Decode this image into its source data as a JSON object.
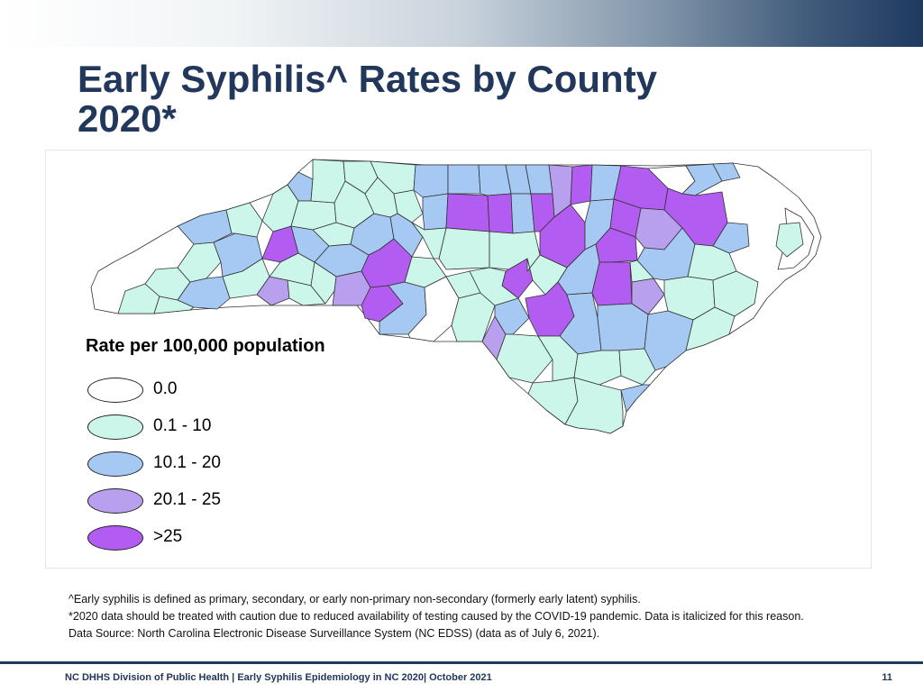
{
  "slide": {
    "title": "Early Syphilis^ Rates by County\n2020*"
  },
  "legend": {
    "title": "Rate per 100,000 population",
    "items": [
      {
        "label": "0.0",
        "color": "#ffffff"
      },
      {
        "label": "0.1 - 10",
        "color": "#ccf6ea"
      },
      {
        "label": "10.1 - 20",
        "color": "#a6c9f4"
      },
      {
        "label": "20.1 - 25",
        "color": "#b9a0ef"
      },
      {
        "label": ">25",
        "color": "#b35cf2"
      }
    ]
  },
  "notes": [
    "^Early syphilis is defined as primary, secondary, or early non-primary non-secondary (formerly early latent) syphilis.",
    "*2020 data should be treated with caution due to reduced availability of testing caused by the COVID-19 pandemic. Data is italicized for this reason.",
    "Data Source: North Carolina Electronic Disease Surveillance System (NC EDSS) (data as of July 6, 2021)."
  ],
  "footer": {
    "text": "NC DHHS Division of Public Health | Early Syphilis Epidemiology in NC 2020| October 2021",
    "page_number": "11"
  }
}
